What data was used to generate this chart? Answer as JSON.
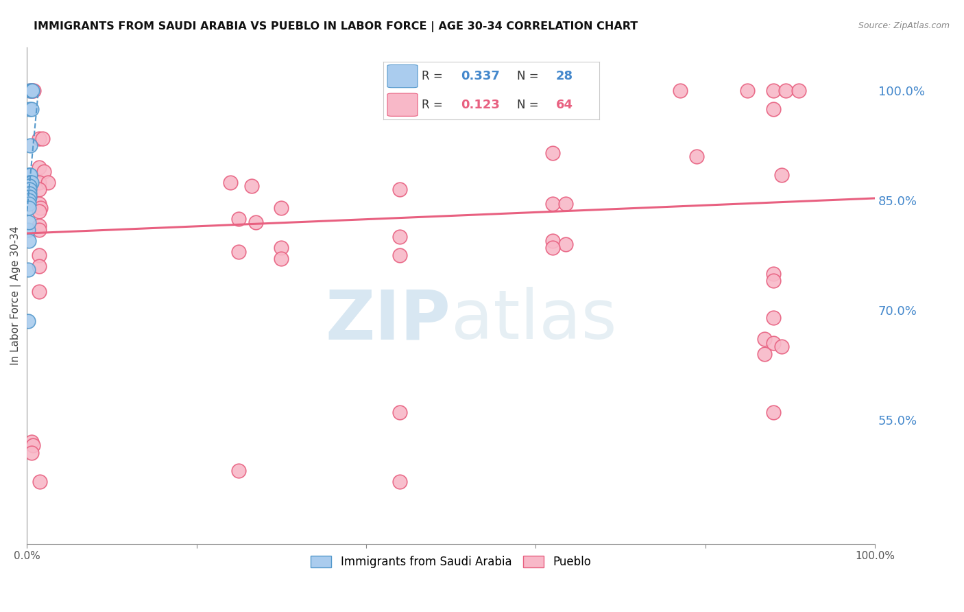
{
  "title": "IMMIGRANTS FROM SAUDI ARABIA VS PUEBLO IN LABOR FORCE | AGE 30-34 CORRELATION CHART",
  "source": "Source: ZipAtlas.com",
  "ylabel": "In Labor Force | Age 30-34",
  "x_min": 0.0,
  "x_max": 1.0,
  "y_min": 0.38,
  "y_max": 1.06,
  "x_tick_positions": [
    0.0,
    0.2,
    0.4,
    0.6,
    0.8,
    1.0
  ],
  "x_tick_labels": [
    "0.0%",
    "",
    "",
    "",
    "",
    "100.0%"
  ],
  "y_tick_positions": [
    0.55,
    0.7,
    0.85,
    1.0
  ],
  "y_tick_labels": [
    "55.0%",
    "70.0%",
    "85.0%",
    "100.0%"
  ],
  "blue_fill": "#aaccee",
  "blue_edge": "#5599cc",
  "pink_fill": "#f8b8c8",
  "pink_edge": "#e86080",
  "grid_color": "#cccccc",
  "scatter_blue": [
    [
      0.003,
      1.0
    ],
    [
      0.005,
      1.0
    ],
    [
      0.006,
      1.0
    ],
    [
      0.003,
      0.975
    ],
    [
      0.005,
      0.975
    ],
    [
      0.004,
      0.925
    ],
    [
      0.002,
      0.885
    ],
    [
      0.003,
      0.885
    ],
    [
      0.004,
      0.885
    ],
    [
      0.003,
      0.875
    ],
    [
      0.004,
      0.875
    ],
    [
      0.005,
      0.875
    ],
    [
      0.002,
      0.87
    ],
    [
      0.003,
      0.87
    ],
    [
      0.002,
      0.865
    ],
    [
      0.003,
      0.865
    ],
    [
      0.002,
      0.86
    ],
    [
      0.003,
      0.86
    ],
    [
      0.002,
      0.855
    ],
    [
      0.003,
      0.855
    ],
    [
      0.002,
      0.85
    ],
    [
      0.002,
      0.845
    ],
    [
      0.002,
      0.84
    ],
    [
      0.001,
      0.81
    ],
    [
      0.001,
      0.685
    ],
    [
      0.002,
      0.795
    ],
    [
      0.001,
      0.755
    ],
    [
      0.002,
      0.82
    ]
  ],
  "scatter_pink": [
    [
      0.004,
      1.0
    ],
    [
      0.006,
      1.0
    ],
    [
      0.008,
      1.0
    ],
    [
      0.77,
      1.0
    ],
    [
      0.85,
      1.0
    ],
    [
      0.88,
      1.0
    ],
    [
      0.895,
      1.0
    ],
    [
      0.91,
      1.0
    ],
    [
      0.88,
      0.975
    ],
    [
      0.014,
      0.935
    ],
    [
      0.018,
      0.935
    ],
    [
      0.62,
      0.915
    ],
    [
      0.79,
      0.91
    ],
    [
      0.014,
      0.895
    ],
    [
      0.02,
      0.89
    ],
    [
      0.89,
      0.885
    ],
    [
      0.014,
      0.875
    ],
    [
      0.025,
      0.875
    ],
    [
      0.24,
      0.875
    ],
    [
      0.265,
      0.87
    ],
    [
      0.44,
      0.865
    ],
    [
      0.014,
      0.865
    ],
    [
      0.62,
      0.845
    ],
    [
      0.635,
      0.845
    ],
    [
      0.014,
      0.845
    ],
    [
      0.016,
      0.84
    ],
    [
      0.3,
      0.84
    ],
    [
      0.014,
      0.835
    ],
    [
      0.25,
      0.825
    ],
    [
      0.27,
      0.82
    ],
    [
      0.014,
      0.815
    ],
    [
      0.014,
      0.81
    ],
    [
      0.44,
      0.8
    ],
    [
      0.62,
      0.795
    ],
    [
      0.635,
      0.79
    ],
    [
      0.3,
      0.785
    ],
    [
      0.25,
      0.78
    ],
    [
      0.014,
      0.775
    ],
    [
      0.62,
      0.785
    ],
    [
      0.44,
      0.775
    ],
    [
      0.014,
      0.76
    ],
    [
      0.88,
      0.75
    ],
    [
      0.88,
      0.74
    ],
    [
      0.014,
      0.725
    ],
    [
      0.3,
      0.77
    ],
    [
      0.88,
      0.69
    ],
    [
      0.87,
      0.66
    ],
    [
      0.88,
      0.655
    ],
    [
      0.89,
      0.65
    ],
    [
      0.87,
      0.64
    ],
    [
      0.44,
      0.56
    ],
    [
      0.88,
      0.56
    ],
    [
      0.005,
      0.52
    ],
    [
      0.007,
      0.515
    ],
    [
      0.005,
      0.505
    ],
    [
      0.25,
      0.48
    ],
    [
      0.015,
      0.465
    ],
    [
      0.44,
      0.465
    ]
  ],
  "blue_trend_x": [
    0.0,
    0.013
  ],
  "blue_trend_y": [
    0.835,
    0.995
  ],
  "pink_trend_x": [
    0.0,
    1.0
  ],
  "pink_trend_y": [
    0.805,
    0.853
  ],
  "watermark_zip": "ZIP",
  "watermark_atlas": "atlas",
  "background": "#ffffff"
}
